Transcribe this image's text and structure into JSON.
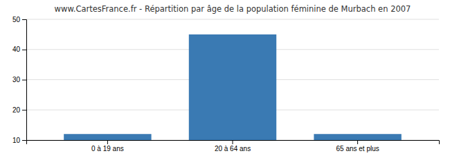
{
  "chart_data": {
    "type": "bar",
    "title": "www.CartesFrance.fr - Répartition par âge de la population féminine de Murbach en 2007",
    "categories": [
      "0 à 19 ans",
      "20 à 64 ans",
      "65 ans et plus"
    ],
    "values": [
      12,
      45,
      12
    ],
    "color": "#3a7ab3",
    "ylim": [
      10,
      50
    ],
    "yticks": [
      10,
      20,
      30,
      40,
      50
    ],
    "grid": true
  }
}
